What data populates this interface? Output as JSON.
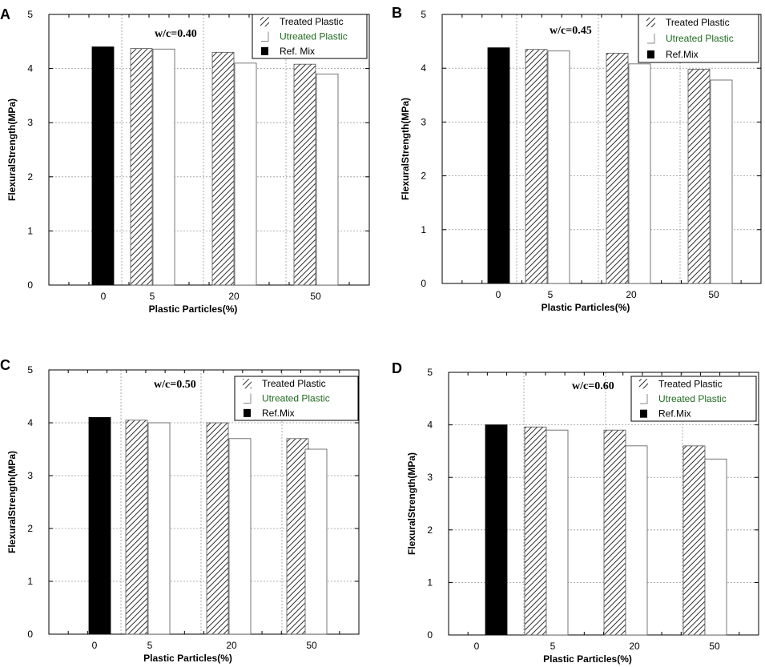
{
  "chart_data": [
    {
      "panel": "A",
      "type": "bar",
      "annotation": "w/c=0.40",
      "categories": [
        "0",
        "5",
        "20",
        "50"
      ],
      "series": [
        {
          "name": "Ref. Mix",
          "values": [
            4.4,
            null,
            null,
            null
          ]
        },
        {
          "name": "Treated Plastic",
          "values": [
            null,
            4.37,
            4.3,
            4.08
          ]
        },
        {
          "name": "Utreated Plastic",
          "values": [
            null,
            4.36,
            4.1,
            3.9
          ]
        }
      ],
      "legend": [
        "Treated Plastic",
        "Utreated Plastic",
        "Ref. Mix"
      ],
      "xlabel": "Plastic Particles(%)",
      "ylabel": "FlexuralStrength(MPa)",
      "ylim": [
        0,
        5
      ],
      "yticks": [
        "0",
        "1",
        "2",
        "3",
        "4",
        "5"
      ],
      "grid": true,
      "legend_position": "top-right"
    },
    {
      "panel": "B",
      "type": "bar",
      "annotation": "w/c=0.45",
      "categories": [
        "0",
        "5",
        "20",
        "50"
      ],
      "series": [
        {
          "name": "Ref.Mix",
          "values": [
            4.38,
            null,
            null,
            null
          ]
        },
        {
          "name": "Treated Plastic",
          "values": [
            null,
            4.35,
            4.28,
            3.98
          ]
        },
        {
          "name": "Utreated Plastic",
          "values": [
            null,
            4.32,
            4.08,
            3.78
          ]
        }
      ],
      "legend": [
        "Treated Plastic",
        "Utreated Plastic",
        "Ref.Mix"
      ],
      "xlabel": "Plastic Particles(%)",
      "ylabel": "FlexuralStrength(MPa)",
      "ylim": [
        0,
        5
      ],
      "yticks": [
        "0",
        "1",
        "2",
        "3",
        "4",
        "5"
      ],
      "grid": true,
      "legend_position": "top-right"
    },
    {
      "panel": "C",
      "type": "bar",
      "annotation": "w/c=0.50",
      "categories": [
        "0",
        "5",
        "20",
        "50"
      ],
      "series": [
        {
          "name": "Ref.Mix",
          "values": [
            4.1,
            null,
            null,
            null
          ]
        },
        {
          "name": "Treated Plastic",
          "values": [
            null,
            4.05,
            4.0,
            3.7
          ]
        },
        {
          "name": "Utreated Plastic",
          "values": [
            null,
            4.0,
            3.7,
            3.5
          ]
        }
      ],
      "legend": [
        "Treated Plastic",
        "Utreated Plastic",
        "Ref.Mix"
      ],
      "xlabel": "Plastic Particles(%)",
      "ylabel": "FlexuralStrength(MPa)",
      "ylim": [
        0,
        5
      ],
      "yticks": [
        "0",
        "1",
        "2",
        "3",
        "4",
        "5"
      ],
      "grid": true,
      "legend_position": "top-right"
    },
    {
      "panel": "D",
      "type": "bar",
      "annotation": "w/c=0.60",
      "categories": [
        "0",
        "5",
        "20",
        "50"
      ],
      "series": [
        {
          "name": "Ref.Mix",
          "values": [
            4.0,
            null,
            null,
            null
          ]
        },
        {
          "name": "Treated Plastic",
          "values": [
            null,
            3.96,
            3.9,
            3.6
          ]
        },
        {
          "name": "Utreated Plastic",
          "values": [
            null,
            3.9,
            3.6,
            3.35
          ]
        }
      ],
      "legend": [
        "Treated Plastic",
        "Utreated Plastic",
        "Ref.Mix"
      ],
      "xlabel": "Plastic Particles(%)",
      "ylabel": "FlexuralStrength(MPa)",
      "ylim": [
        0,
        5
      ],
      "yticks": [
        "0",
        "1",
        "2",
        "3",
        "4",
        "5"
      ],
      "grid": true,
      "legend_position": "top-right"
    }
  ],
  "colors": {
    "ref_mix": "#000000",
    "treated_hatch": "#333333",
    "untreated_fill": "#ffffff",
    "legend_green": "#1e6b1e",
    "grid": "#999999"
  }
}
